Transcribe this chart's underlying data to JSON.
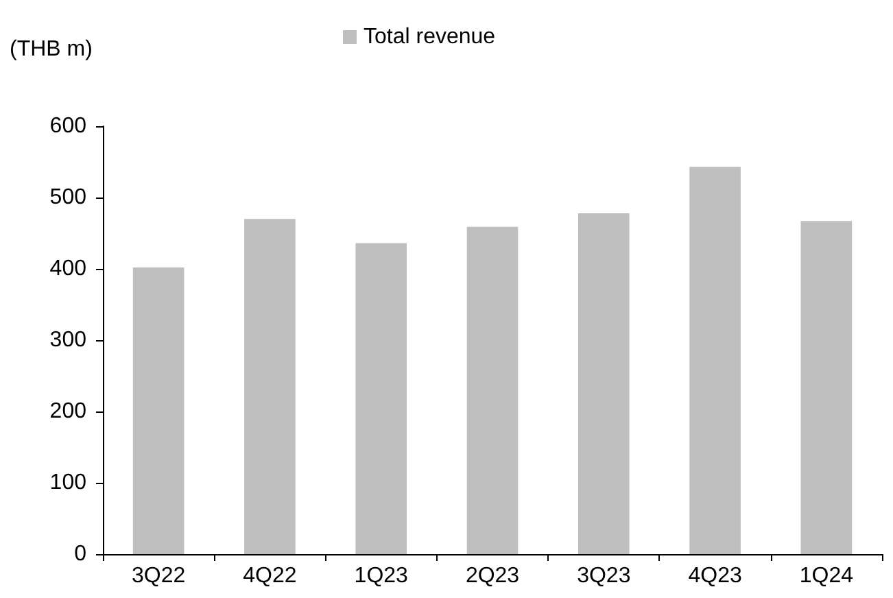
{
  "chart_data": {
    "type": "bar",
    "ylabel": "(THB m)",
    "categories": [
      "3Q22",
      "4Q22",
      "1Q23",
      "2Q23",
      "3Q23",
      "4Q23",
      "1Q24"
    ],
    "series": [
      {
        "name": "Total revenue",
        "color": "#bfbfbf",
        "values": [
          402,
          470,
          436,
          459,
          478,
          543,
          467
        ]
      }
    ],
    "ylim": [
      0,
      600
    ],
    "yticks": [
      0,
      100,
      200,
      300,
      400,
      500,
      600
    ],
    "grid": false,
    "legend": "top"
  }
}
